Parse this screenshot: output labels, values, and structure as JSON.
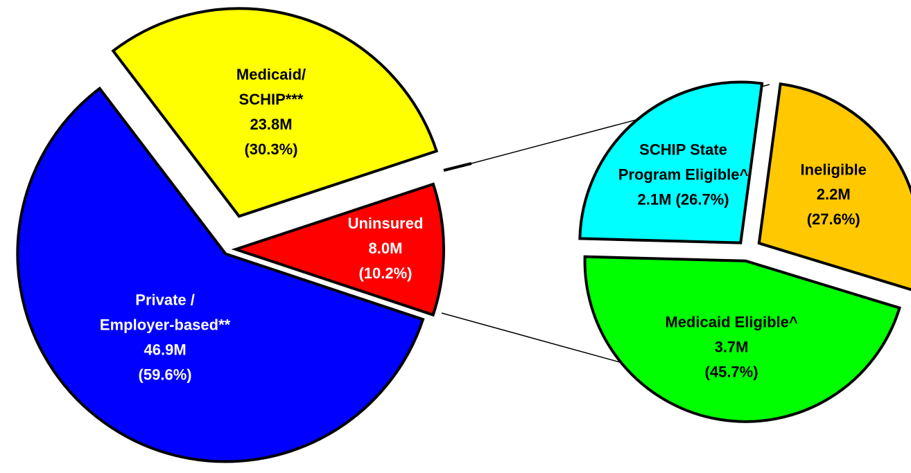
{
  "chart_data": [
    {
      "type": "pie",
      "categories": [
        "Private /\nEmployer-based**",
        "Medicaid/\nSCHIP***",
        "Uninsured"
      ],
      "amounts": [
        "46.9M",
        "23.8M",
        "8.0M"
      ],
      "values": [
        59.6,
        30.3,
        10.2
      ],
      "value_labels": [
        "(59.6%)",
        "(30.3%)",
        "(10.2%)"
      ],
      "colors": [
        "#0000ff",
        "#ffff00",
        "#ff0000"
      ]
    },
    {
      "type": "pie",
      "categories": [
        "Medicaid Eligible^",
        "SCHIP State\nProgram Eligible^",
        "Ineligible"
      ],
      "amounts": [
        "3.7M",
        "2.1M",
        "2.2M"
      ],
      "values": [
        45.7,
        26.7,
        27.6
      ],
      "value_labels": [
        "(45.7%)",
        "(26.7%)",
        "(27.6%)"
      ],
      "colors": [
        "#00ff00",
        "#00ffff",
        "#ffc800"
      ]
    }
  ]
}
